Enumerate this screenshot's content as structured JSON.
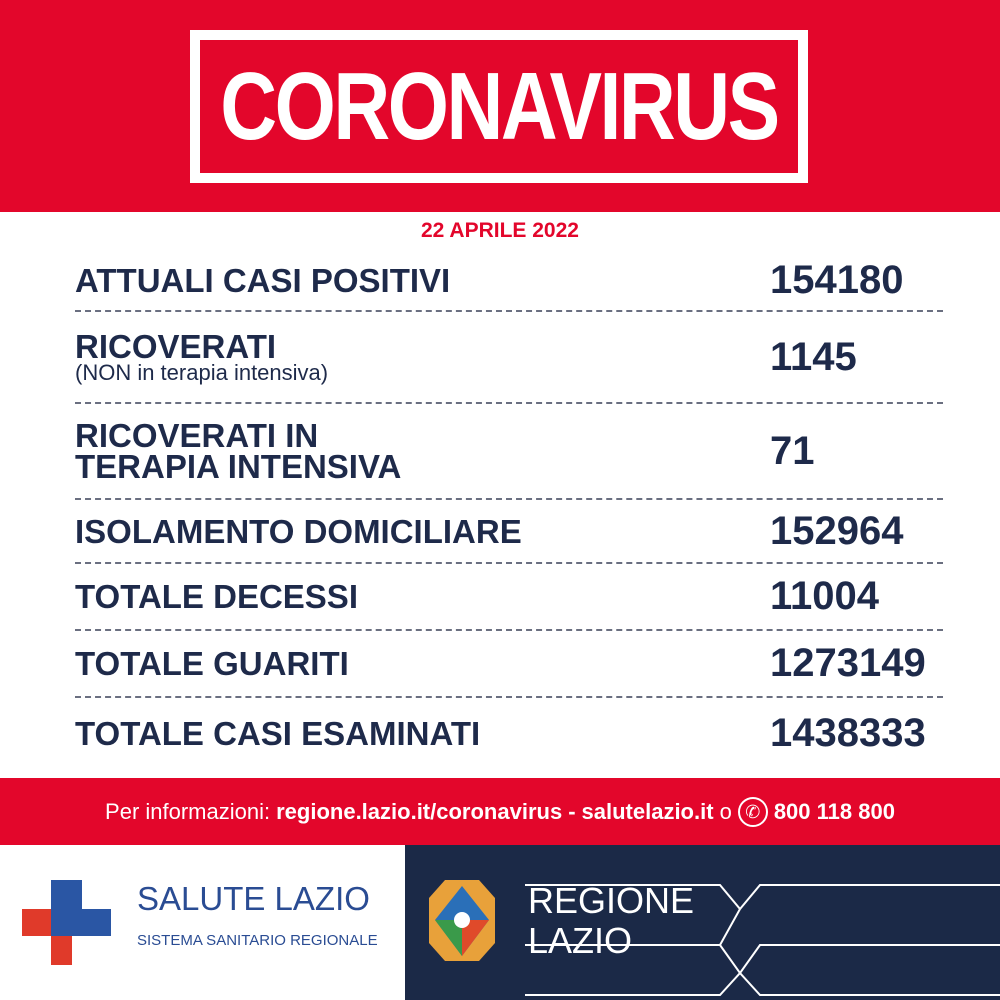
{
  "header": {
    "title": "CORONAVIRUS",
    "date": "22 APRILE 2022"
  },
  "rows": [
    {
      "label": "ATTUALI CASI POSITIVI",
      "value": "154180"
    },
    {
      "label": "RICOVERATI",
      "sublabel": "(NON in terapia intensiva)",
      "value": "1145"
    },
    {
      "label": "RICOVERATI IN",
      "label2": "TERAPIA INTENSIVA",
      "value": "71"
    },
    {
      "label": "ISOLAMENTO DOMICILIARE",
      "value": "152964"
    },
    {
      "label": "TOTALE DECESSI",
      "value": "11004"
    },
    {
      "label": "TOTALE GUARITI",
      "value": "1273149"
    },
    {
      "label": "TOTALE CASI ESAMINATI",
      "value": "1438333"
    }
  ],
  "info": {
    "prefix": "Per informazioni:",
    "link1": "regione.lazio.it/coronavirus",
    "sep": "-",
    "link2": "salutelazio.it",
    "or": "o",
    "phone": "800 118 800",
    "phone_icon": "phone-icon"
  },
  "footer": {
    "salute_title": "SALUTE LAZIO",
    "salute_sub": "SISTEMA SANITARIO REGIONALE",
    "regione_line1": "REGIONE",
    "regione_line2": "LAZIO"
  },
  "colors": {
    "red": "#e3062b",
    "navy": "#1b2947",
    "text": "#1e2a4a",
    "blue": "#2a4c93"
  }
}
